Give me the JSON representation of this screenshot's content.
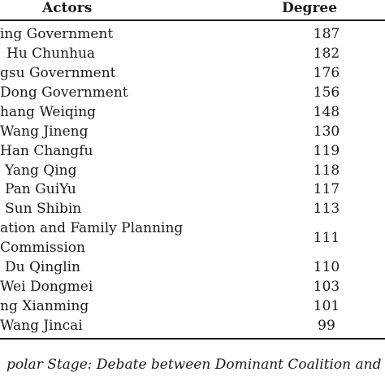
{
  "table": {
    "headers": {
      "actors": "Actors",
      "degree": "Degree"
    },
    "rows": [
      {
        "actor": "ing Government",
        "degree": "187"
      },
      {
        "actor": "Hu Chunhua",
        "degree": "182"
      },
      {
        "actor": "gsu Government",
        "degree": "176"
      },
      {
        "actor": "Dong Government",
        "degree": "156"
      },
      {
        "actor": "hang Weiqing",
        "degree": "148"
      },
      {
        "actor": "Wang Jineng",
        "degree": "130"
      },
      {
        "actor": "Han Changfu",
        "degree": "119"
      },
      {
        "actor": "Yang Qing",
        "degree": "118"
      },
      {
        "actor": "Pan GuiYu",
        "degree": "117"
      },
      {
        "actor": "Sun Shibin",
        "degree": "113"
      },
      {
        "actor_line1": "ation and Family Planning",
        "actor_line2": "Commission",
        "degree": "111"
      },
      {
        "actor": "Du Qinglin",
        "degree": "110"
      },
      {
        "actor": "Wei Dongmei",
        "degree": "103"
      },
      {
        "actor": "ng Xianming",
        "degree": "101"
      },
      {
        "actor": "Wang Jincai",
        "degree": "99"
      }
    ]
  },
  "caption": "polar Stage: Debate between Dominant Coalition and M"
}
